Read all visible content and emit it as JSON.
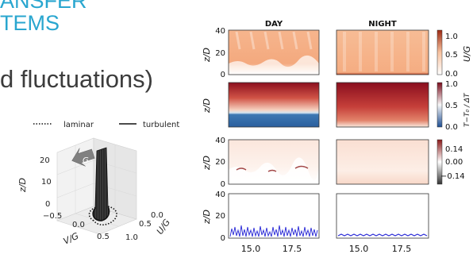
{
  "slide": {
    "title_line1": "ANSFER",
    "title_line2": "TEMS",
    "subtitle": "d fluctuations)",
    "title_color": "#29a6cf"
  },
  "profile_plot": {
    "legend": [
      "laminar",
      "turbulent"
    ],
    "arrow_label": "G",
    "z_label": "z/D",
    "z_ticks": [
      "20",
      "10",
      "0"
    ],
    "v_label": "V/G",
    "v_ticks": [
      "−0.5",
      "0.0",
      "0.5"
    ],
    "u_label": "U/G",
    "u_ticks": [
      "0.0",
      "0.5",
      "1.0"
    ]
  },
  "chart_data": {
    "type": "heatmap",
    "columns": [
      "DAY",
      "NIGHT"
    ],
    "x_ticks": [
      "15.0",
      "17.5"
    ],
    "panels": [
      {
        "ylabel": "z/D",
        "yticks": [
          "40",
          "20",
          "0"
        ],
        "colorbar_ticks": [
          "1.0",
          "0.5",
          "0.0"
        ],
        "colorbar_label": "U/G"
      },
      {
        "ylabel": "z/D",
        "yticks": [
          "",
          "",
          ""
        ],
        "colorbar_ticks": [
          "1.0",
          "0.5",
          "0.0"
        ],
        "colorbar_label": "T−T₀ / ΔT"
      },
      {
        "ylabel": "z/D",
        "yticks": [
          "40",
          "20",
          "0"
        ],
        "colorbar_ticks": [
          "0.14",
          "0.00",
          "−0.14"
        ],
        "colorbar_label": ""
      },
      {
        "ylabel": "z/D",
        "yticks": [
          "40",
          "20",
          "0"
        ],
        "colorbar_ticks": [],
        "colorbar_label": ""
      }
    ]
  }
}
